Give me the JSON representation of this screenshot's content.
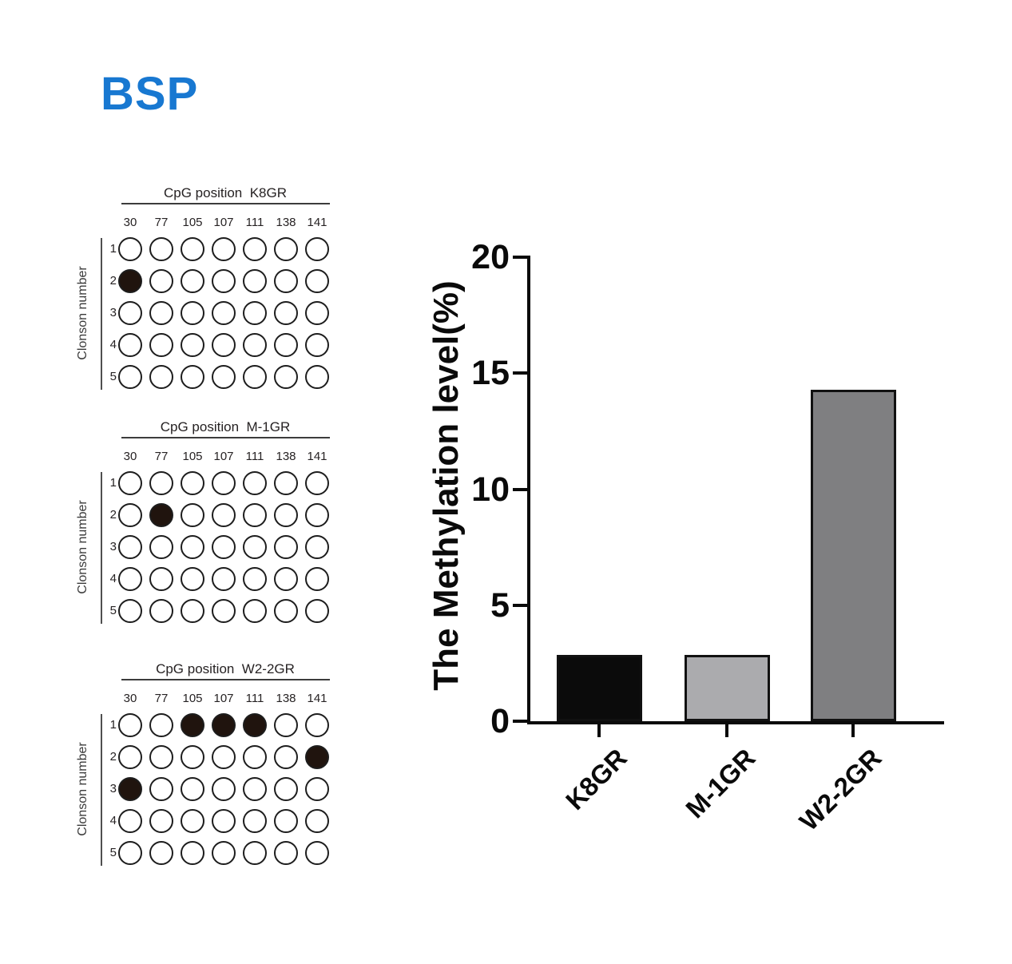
{
  "title": {
    "text": "BSP",
    "color": "#1878d1"
  },
  "colors": {
    "dot_fill": "#20140e",
    "dot_stroke": "#1d1d1d",
    "axis": "#0a0a0a",
    "text": "#262223"
  },
  "panels": [
    {
      "title": "CpG position  K8GR",
      "sample": "K8GR",
      "col_labels": [
        "30",
        "77",
        "105",
        "107",
        "111",
        "138",
        "141"
      ],
      "row_labels": [
        "1",
        "2",
        "3",
        "4",
        "5"
      ],
      "side_label": "Clonson number",
      "filled": [
        [
          0,
          0,
          0,
          0,
          0,
          0,
          0
        ],
        [
          1,
          0,
          0,
          0,
          0,
          0,
          0
        ],
        [
          0,
          0,
          0,
          0,
          0,
          0,
          0
        ],
        [
          0,
          0,
          0,
          0,
          0,
          0,
          0
        ],
        [
          0,
          0,
          0,
          0,
          0,
          0,
          0
        ]
      ]
    },
    {
      "title": "CpG position  M-1GR",
      "sample": "M-1GR",
      "col_labels": [
        "30",
        "77",
        "105",
        "107",
        "111",
        "138",
        "141"
      ],
      "row_labels": [
        "1",
        "2",
        "3",
        "4",
        "5"
      ],
      "side_label": "Clonson number",
      "filled": [
        [
          0,
          0,
          0,
          0,
          0,
          0,
          0
        ],
        [
          0,
          1,
          0,
          0,
          0,
          0,
          0
        ],
        [
          0,
          0,
          0,
          0,
          0,
          0,
          0
        ],
        [
          0,
          0,
          0,
          0,
          0,
          0,
          0
        ],
        [
          0,
          0,
          0,
          0,
          0,
          0,
          0
        ]
      ]
    },
    {
      "title": "CpG position  W2-2GR",
      "sample": "W2-2GR",
      "col_labels": [
        "30",
        "77",
        "105",
        "107",
        "111",
        "138",
        "141"
      ],
      "row_labels": [
        "1",
        "2",
        "3",
        "4",
        "5"
      ],
      "side_label": "Clonson number",
      "filled": [
        [
          0,
          0,
          1,
          1,
          1,
          0,
          0
        ],
        [
          0,
          0,
          0,
          0,
          0,
          0,
          1
        ],
        [
          1,
          0,
          0,
          0,
          0,
          0,
          0
        ],
        [
          0,
          0,
          0,
          0,
          0,
          0,
          0
        ],
        [
          0,
          0,
          0,
          0,
          0,
          0,
          0
        ]
      ]
    }
  ],
  "chart_data": {
    "type": "bar",
    "categories": [
      "K8GR",
      "M-1GR",
      "W2-2GR"
    ],
    "values": [
      2.86,
      2.86,
      14.29
    ],
    "title": "",
    "xlabel": "",
    "ylabel": "The Methylation level(%)",
    "ylim": [
      0,
      20
    ],
    "yticks": [
      0,
      5,
      10,
      15,
      20
    ],
    "grid": false,
    "legend": false,
    "bar_colors": [
      "#0b0b0b",
      "#ababae",
      "#7f7f81"
    ],
    "bar_border_color": "#111111"
  }
}
